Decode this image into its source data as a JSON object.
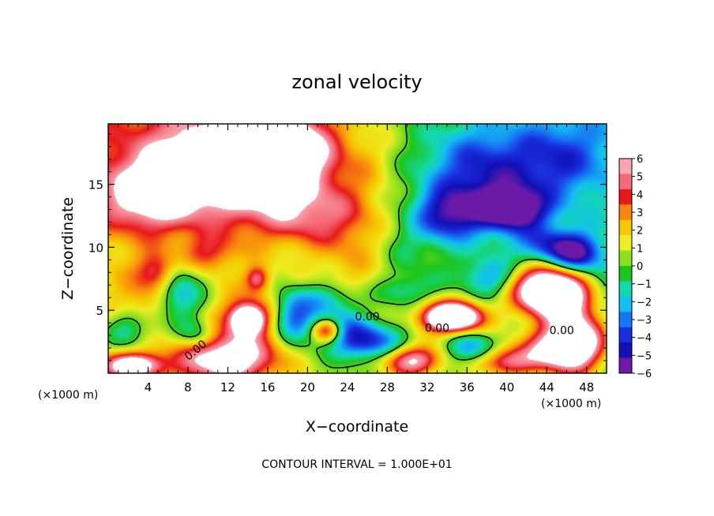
{
  "chart_data": {
    "type": "heatmap",
    "title": "zonal velocity",
    "xlabel": "X−coordinate",
    "ylabel": "Z−coordinate",
    "x_unit_label": "(×1000 m)",
    "z_unit_label": "(×1000 m)",
    "footer": "CONTOUR INTERVAL = 1.000E+01",
    "xlim": [
      0,
      50
    ],
    "ylim": [
      0,
      19.8
    ],
    "x_ticks": [
      "4",
      "8",
      "12",
      "16",
      "20",
      "24",
      "28",
      "32",
      "36",
      "40",
      "44",
      "48"
    ],
    "y_ticks": [
      "5",
      "10",
      "15"
    ],
    "colorbar": {
      "labels": [
        "6",
        "5",
        "4",
        "3",
        "2",
        "1",
        "0",
        "−1",
        "−2",
        "−3",
        "−4",
        "−5",
        "−6"
      ],
      "colors": [
        "#f9a6b0",
        "#f46a78",
        "#e8191c",
        "#f98510",
        "#f5c800",
        "#eded22",
        "#8fe01e",
        "#1dc61d",
        "#13d9a8",
        "#13bff2",
        "#1677f2",
        "#1a2ede",
        "#1010b4",
        "#6b1aa8"
      ]
    },
    "contour_labels": [
      "0.00",
      "0.00",
      "0.00",
      "0.00"
    ],
    "blobs": [
      {
        "x": 12.5,
        "z": 16.5,
        "r": [
          9.0,
          4.2
        ],
        "v": 8
      },
      {
        "x": 18.5,
        "z": 18.0,
        "r": [
          4.0,
          2.8
        ],
        "v": 4.8
      },
      {
        "x": 4.0,
        "z": 14.0,
        "r": [
          4.5,
          2.6
        ],
        "v": 4.5
      },
      {
        "x": 20.5,
        "z": 12.5,
        "r": [
          5.5,
          2.5
        ],
        "v": 3.2
      },
      {
        "x": 24.5,
        "z": 9.0,
        "r": [
          3.5,
          4.0
        ],
        "v": 1.6
      },
      {
        "x": 26.0,
        "z": 16.5,
        "r": [
          3.0,
          4.0
        ],
        "v": 1.0
      },
      {
        "x": 30.0,
        "z": 10.0,
        "r": [
          2.5,
          2.5
        ],
        "v": -1.0
      },
      {
        "x": 37.5,
        "z": 15.5,
        "r": [
          6.0,
          4.0
        ],
        "v": -4.5
      },
      {
        "x": 40.5,
        "z": 13.0,
        "r": [
          3.5,
          1.6
        ],
        "v": -6
      },
      {
        "x": 34.0,
        "z": 12.5,
        "r": [
          3.0,
          2.0
        ],
        "v": -4.2
      },
      {
        "x": 45.5,
        "z": 17.0,
        "r": [
          4.5,
          3.0
        ],
        "v": -2.8
      },
      {
        "x": 47.0,
        "z": 9.5,
        "r": [
          2.5,
          1.5
        ],
        "v": -5
      },
      {
        "x": 43.5,
        "z": 6.8,
        "r": [
          3.5,
          2.0
        ],
        "v": 8
      },
      {
        "x": 45.5,
        "z": 6.0,
        "r": [
          3.0,
          1.8
        ],
        "v": 6
      },
      {
        "x": 45.5,
        "z": 2.0,
        "r": [
          3.5,
          2.0
        ],
        "v": 8
      },
      {
        "x": 47.5,
        "z": 3.0,
        "r": [
          2.5,
          2.5
        ],
        "v": 4.5
      },
      {
        "x": 34.5,
        "z": 4.4,
        "r": [
          2.6,
          1.0
        ],
        "v": 8
      },
      {
        "x": 34.5,
        "z": 4.6,
        "r": [
          3.8,
          1.6
        ],
        "v": 4
      },
      {
        "x": 14.0,
        "z": 4.2,
        "r": [
          1.5,
          1.0
        ],
        "v": 7
      },
      {
        "x": 14.0,
        "z": 4.6,
        "r": [
          2.8,
          1.8
        ],
        "v": 3.5
      },
      {
        "x": 22.0,
        "z": 3.4,
        "r": [
          1.6,
          1.0
        ],
        "v": 7
      },
      {
        "x": 22.5,
        "z": 3.8,
        "r": [
          3.0,
          1.6
        ],
        "v": -4
      },
      {
        "x": 12.0,
        "z": 1.2,
        "r": [
          5.0,
          2.0
        ],
        "v": 7
      },
      {
        "x": 2.5,
        "z": 0.6,
        "r": [
          3.0,
          1.0
        ],
        "v": 7
      },
      {
        "x": 30.5,
        "z": 1.0,
        "r": [
          3.0,
          1.2
        ],
        "v": 6
      },
      {
        "x": 40.0,
        "z": 1.0,
        "r": [
          3.0,
          1.2
        ],
        "v": 5
      },
      {
        "x": 7.0,
        "z": 6.5,
        "r": [
          2.5,
          2.5
        ],
        "v": -4
      },
      {
        "x": 3.5,
        "z": 5.5,
        "r": [
          2.5,
          2.0
        ],
        "v": 1.5
      },
      {
        "x": 2.0,
        "z": 3.5,
        "r": [
          2.5,
          1.5
        ],
        "v": -3
      },
      {
        "x": 18.5,
        "z": 4.5,
        "r": [
          2.0,
          2.0
        ],
        "v": -4
      },
      {
        "x": 26.0,
        "z": 2.5,
        "r": [
          3.5,
          1.5
        ],
        "v": -5
      },
      {
        "x": 36.5,
        "z": 2.0,
        "r": [
          2.5,
          1.2
        ],
        "v": -3.5
      },
      {
        "x": 9.0,
        "z": 3.0,
        "r": [
          2.0,
          1.2
        ],
        "v": -3
      },
      {
        "x": 5.0,
        "z": 8.0,
        "r": [
          2.0,
          1.5
        ],
        "v": 4
      },
      {
        "x": 15.0,
        "z": 7.5,
        "r": [
          1.2,
          1.0
        ],
        "v": 4
      },
      {
        "x": 30.0,
        "z": 6.5,
        "r": [
          3.0,
          1.2
        ],
        "v": -2
      },
      {
        "x": 38.5,
        "z": 7.5,
        "r": [
          3.0,
          1.5
        ],
        "v": -3
      },
      {
        "x": 44.0,
        "z": 10.0,
        "r": [
          3.0,
          1.5
        ],
        "v": -3.5
      },
      {
        "x": 10.0,
        "z": 9.5,
        "r": [
          3.0,
          1.5
        ],
        "v": 2.5
      },
      {
        "x": 22.0,
        "z": 6.0,
        "r": [
          3.0,
          1.2
        ],
        "v": -2.5
      }
    ]
  }
}
